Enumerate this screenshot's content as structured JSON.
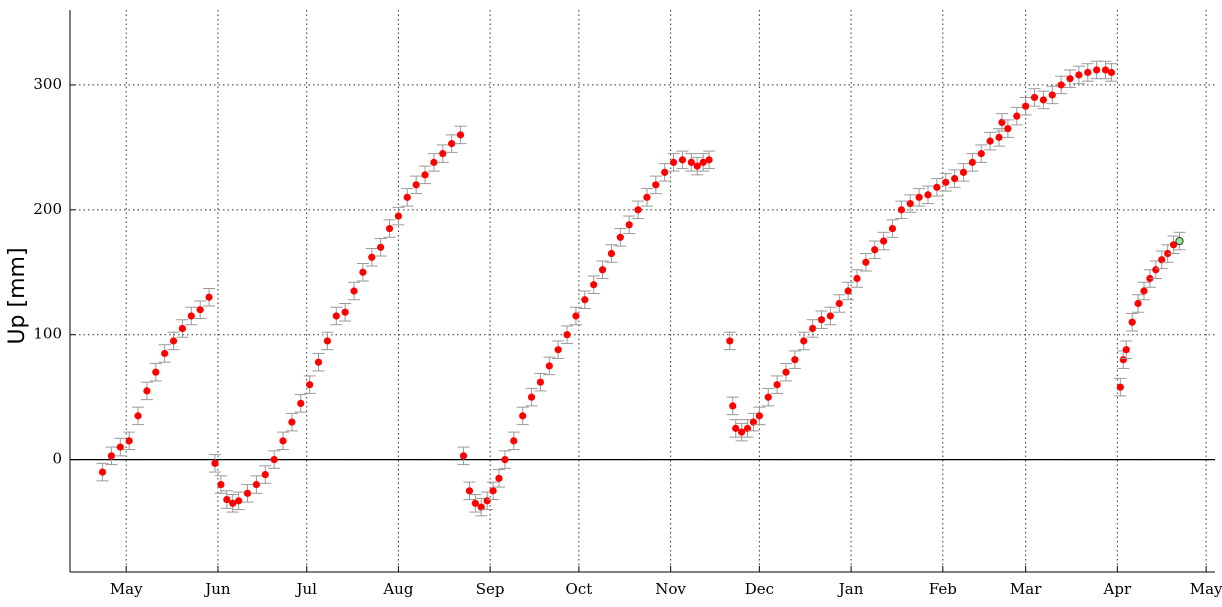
{
  "chart_data": {
    "type": "scatter",
    "ylabel": "Up [mm]",
    "xlim": [
      -19,
      368
    ],
    "ylim": [
      -90,
      360
    ],
    "xticks": [
      {
        "value": 0,
        "label": "May"
      },
      {
        "value": 31,
        "label": "Jun"
      },
      {
        "value": 61,
        "label": "Jul"
      },
      {
        "value": 92,
        "label": "Aug"
      },
      {
        "value": 123,
        "label": "Sep"
      },
      {
        "value": 153,
        "label": "Oct"
      },
      {
        "value": 184,
        "label": "Nov"
      },
      {
        "value": 214,
        "label": "Dec"
      },
      {
        "value": 245,
        "label": "Jan"
      },
      {
        "value": 276,
        "label": "Feb"
      },
      {
        "value": 304,
        "label": "Mar"
      },
      {
        "value": 335,
        "label": "Apr"
      },
      {
        "value": 365,
        "label": "May"
      }
    ],
    "yticks": [
      0,
      100,
      200,
      300
    ],
    "grid": true,
    "error": 7,
    "series": [
      {
        "color": "#ff0000",
        "x": [
          -8,
          -5,
          -2,
          1,
          4,
          7,
          10,
          13,
          16,
          19,
          22,
          25,
          28,
          30,
          32,
          34,
          36,
          38,
          41,
          44,
          47,
          50,
          53,
          56,
          59,
          62,
          65,
          68,
          71,
          74,
          77,
          80,
          83,
          86,
          89,
          92,
          95,
          98,
          101,
          104,
          107,
          110,
          113,
          114,
          116,
          118,
          120,
          122,
          124,
          126,
          128,
          131,
          134,
          137,
          140,
          143,
          146,
          149,
          152,
          155,
          158,
          161,
          164,
          167,
          170,
          173,
          176,
          179,
          182,
          185,
          188,
          191,
          193,
          195,
          197,
          204,
          205,
          206,
          208,
          210,
          212,
          214,
          217,
          220,
          223,
          226,
          229,
          232,
          235,
          238,
          241,
          244,
          247,
          250,
          253,
          256,
          259,
          262,
          265,
          268,
          271,
          274,
          277,
          280,
          283,
          286,
          289,
          292,
          295,
          296,
          298,
          301,
          304,
          307,
          310,
          313,
          316,
          319,
          322,
          325,
          328,
          331,
          333,
          336,
          337,
          338,
          340,
          342,
          344,
          346,
          348,
          350,
          352,
          354
        ],
        "values": [
          -10,
          3,
          10,
          15,
          35,
          55,
          70,
          85,
          95,
          105,
          115,
          120,
          130,
          -3,
          -20,
          -32,
          -35,
          -33,
          -27,
          -20,
          -12,
          0,
          15,
          30,
          45,
          60,
          78,
          95,
          115,
          118,
          135,
          150,
          162,
          170,
          185,
          195,
          210,
          220,
          228,
          238,
          245,
          253,
          260,
          3,
          -25,
          -35,
          -38,
          -33,
          -25,
          -15,
          0,
          15,
          35,
          50,
          62,
          75,
          88,
          100,
          115,
          128,
          140,
          152,
          165,
          178,
          188,
          200,
          210,
          220,
          230,
          238,
          240,
          238,
          235,
          238,
          240,
          95,
          43,
          25,
          22,
          25,
          30,
          35,
          50,
          60,
          70,
          80,
          95,
          105,
          112,
          115,
          125,
          135,
          145,
          158,
          168,
          175,
          185,
          200,
          205,
          210,
          212,
          218,
          222,
          225,
          230,
          238,
          245,
          255,
          258,
          270,
          265,
          275,
          283,
          290,
          288,
          292,
          300,
          305,
          308,
          310,
          312,
          312,
          310,
          58,
          80,
          88,
          110,
          125,
          135,
          145,
          152,
          160,
          165,
          172
        ]
      },
      {
        "color": "#90ee90",
        "x": [
          356
        ],
        "values": [
          175
        ]
      }
    ]
  }
}
